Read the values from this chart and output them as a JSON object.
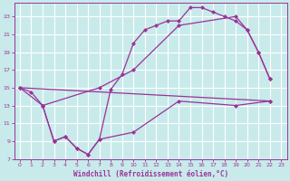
{
  "bg_color": "#c8eaea",
  "grid_color": "#ffffff",
  "line_color": "#993399",
  "xlabel": "Windchill (Refroidissement éolien,°C)",
  "xlim": [
    -0.5,
    23.5
  ],
  "ylim": [
    7,
    24.5
  ],
  "yticks": [
    7,
    9,
    11,
    13,
    15,
    17,
    19,
    21,
    23
  ],
  "xticks": [
    0,
    1,
    2,
    3,
    4,
    5,
    6,
    7,
    8,
    9,
    10,
    11,
    12,
    13,
    14,
    15,
    16,
    17,
    18,
    19,
    20,
    21,
    22,
    23
  ],
  "line1_x": [
    0,
    1,
    2,
    3,
    4,
    5,
    6,
    7,
    8,
    9,
    10,
    11,
    12,
    13,
    14,
    15,
    16,
    17,
    18,
    19,
    20,
    21,
    22
  ],
  "line1_y": [
    15,
    14.5,
    13,
    9,
    9.5,
    8.2,
    7.5,
    9.2,
    14.8,
    16.5,
    20,
    21.5,
    22,
    22.5,
    22.5,
    24,
    24,
    23.5,
    23,
    22.5,
    21.5,
    19,
    16
  ],
  "line2_x": [
    0,
    2,
    7,
    10,
    14,
    19,
    20,
    21,
    22
  ],
  "line2_y": [
    15,
    13,
    15,
    17,
    22,
    23,
    21.5,
    19,
    16
  ],
  "line3_x": [
    2,
    3,
    4,
    5,
    6,
    7,
    10,
    14,
    19,
    22
  ],
  "line3_y": [
    13,
    9,
    9.5,
    8.2,
    7.5,
    9.2,
    10,
    13.5,
    13,
    13.5
  ],
  "line4_x": [
    0,
    22
  ],
  "line4_y": [
    15,
    13.5
  ]
}
